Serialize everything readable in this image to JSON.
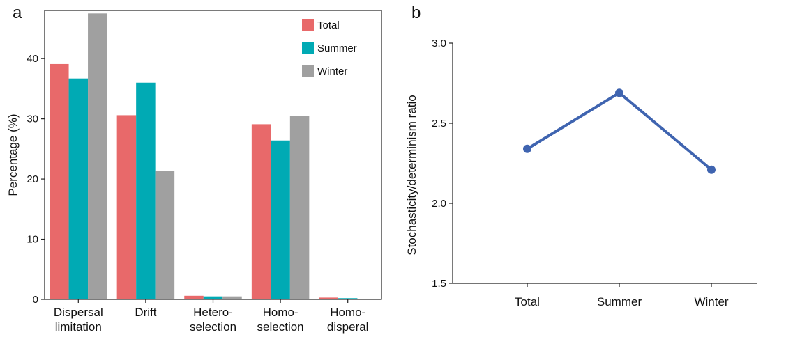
{
  "chart_data": [
    {
      "panel": "a",
      "type": "bar",
      "ylabel": "Percentage (%)",
      "xlabel": "",
      "ylim": [
        0,
        48
      ],
      "yticks": [
        0,
        10,
        20,
        30,
        40
      ],
      "categories": [
        [
          "Dispersal",
          "limitation"
        ],
        [
          "Drift"
        ],
        [
          "Hetero-",
          "selection"
        ],
        [
          "Homo-",
          "selection"
        ],
        [
          "Homo-",
          "disperal"
        ]
      ],
      "series": [
        {
          "name": "Total",
          "color": "#E8696A",
          "values": [
            39.1,
            30.6,
            0.6,
            29.1,
            0.3
          ]
        },
        {
          "name": "Summer",
          "color": "#00AAB4",
          "values": [
            36.7,
            36.0,
            0.5,
            26.4,
            0.2
          ]
        },
        {
          "name": "Winter",
          "color": "#A0A0A0",
          "values": [
            47.5,
            21.3,
            0.5,
            30.5,
            0.0
          ]
        }
      ],
      "legend_position": "top-right",
      "grid": false
    },
    {
      "panel": "b",
      "type": "line",
      "ylabel": "Stochasticity/determinism ratio",
      "xlabel": "",
      "categories": [
        "Total",
        "Summer",
        "Winter"
      ],
      "ylim": [
        1.5,
        3.0
      ],
      "yticks": [
        "1.5",
        "2.0",
        "2.5",
        "3.0"
      ],
      "series": [
        {
          "color": "#3F64B0",
          "values": [
            2.34,
            2.69,
            2.21
          ]
        }
      ],
      "grid": false
    }
  ]
}
